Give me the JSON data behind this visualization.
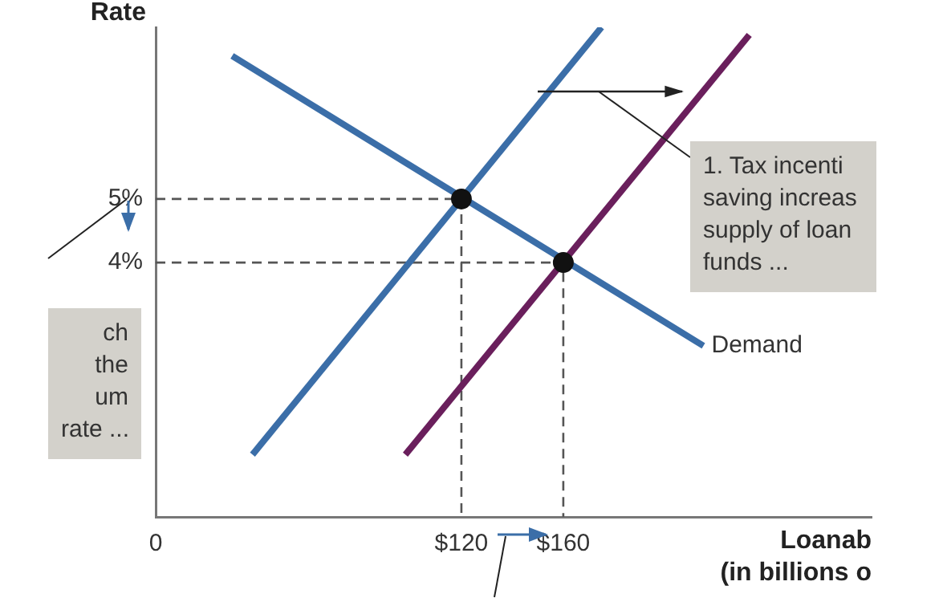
{
  "chart_data": {
    "type": "line",
    "xlabel": "Loanab\n(in billions o",
    "ylabel": "Rate",
    "xlim": [
      0,
      281
    ],
    "ylim": [
      0,
      7.7
    ],
    "xticks": [
      {
        "value": 0,
        "label": "0"
      },
      {
        "value": 120,
        "label": "$120"
      },
      {
        "value": 160,
        "label": "$160"
      }
    ],
    "yticks": [
      {
        "value": 4,
        "label": "4%"
      },
      {
        "value": 5,
        "label": "5%"
      }
    ],
    "grid": false,
    "legend": false,
    "marker": "none",
    "series": [
      {
        "color": "#3b6ea8",
        "x": [
          38,
          175
        ],
        "values": [
          0.98,
          7.7
        ]
      },
      {
        "color": "#6a1f5c",
        "x": [
          98,
          233
        ],
        "values": [
          0.98,
          7.58
        ]
      },
      {
        "name": "Demand",
        "color": "#3b6ea8",
        "x": [
          30,
          215
        ],
        "values": [
          7.25,
          2.69
        ]
      },
      {
        "color": "#555555",
        "line_style": "dashed",
        "x": [
          0,
          120,
          120
        ],
        "values": [
          5,
          5,
          0
        ]
      },
      {
        "color": "#555555",
        "line_style": "dashed",
        "x": [
          0,
          160,
          160
        ],
        "values": [
          4,
          4,
          0
        ]
      },
      {
        "type": "scatter",
        "marker": "circle",
        "color": "#111111",
        "x": [
          120,
          160
        ],
        "values": [
          5,
          4
        ]
      }
    ],
    "annotations": [
      "1. Tax incenti\nsaving increas\nsupply of loan\nfunds ...",
      "ch\nthe\num\nrate ..."
    ]
  }
}
